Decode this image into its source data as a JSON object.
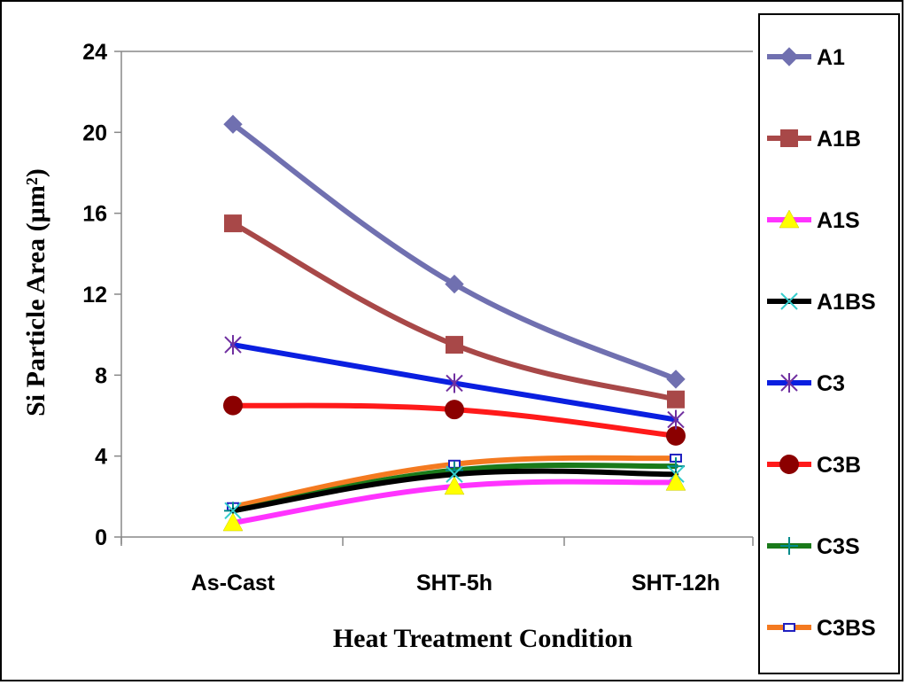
{
  "chart_data": {
    "type": "line",
    "title": "",
    "xlabel": "Heat Treatment Condition",
    "ylabel": "Si Particle Area (µm²)",
    "categories": [
      "As-Cast",
      "SHT-5h",
      "SHT-12h"
    ],
    "ylim": [
      0,
      24
    ],
    "yticks": [
      "0",
      "4",
      "8",
      "12",
      "16",
      "20",
      "24"
    ],
    "legend_position": "right",
    "series": [
      {
        "name": "A1",
        "values": [
          20.4,
          12.5,
          7.8
        ],
        "color": "#7070B0",
        "marker": "diamond"
      },
      {
        "name": "A1B",
        "values": [
          15.5,
          9.5,
          6.8
        ],
        "color": "#A84848",
        "marker": "square"
      },
      {
        "name": "A1S",
        "values": [
          0.7,
          2.5,
          2.7
        ],
        "color": "#FF33FF",
        "marker": "triangle",
        "marker_color": "#FFFF00"
      },
      {
        "name": "A1BS",
        "values": [
          1.3,
          3.1,
          3.1
        ],
        "color": "#000000",
        "marker": "x",
        "marker_color": "#33CCCC"
      },
      {
        "name": "C3",
        "values": [
          9.5,
          7.6,
          5.8
        ],
        "color": "#0A1FE0",
        "marker": "asterisk",
        "marker_color": "#7030A0"
      },
      {
        "name": "C3B",
        "values": [
          6.5,
          6.3,
          5.0
        ],
        "color": "#FF1A1A",
        "marker": "circle",
        "marker_color": "#8B0000"
      },
      {
        "name": "C3S",
        "values": [
          1.3,
          3.3,
          3.5
        ],
        "color": "#1A7A1A",
        "marker": "plus",
        "marker_color": "#008B8B"
      },
      {
        "name": "C3BS",
        "values": [
          1.5,
          3.6,
          3.9
        ],
        "color": "#F47A20",
        "marker": "dash",
        "marker_color": "#2020C0"
      }
    ]
  }
}
